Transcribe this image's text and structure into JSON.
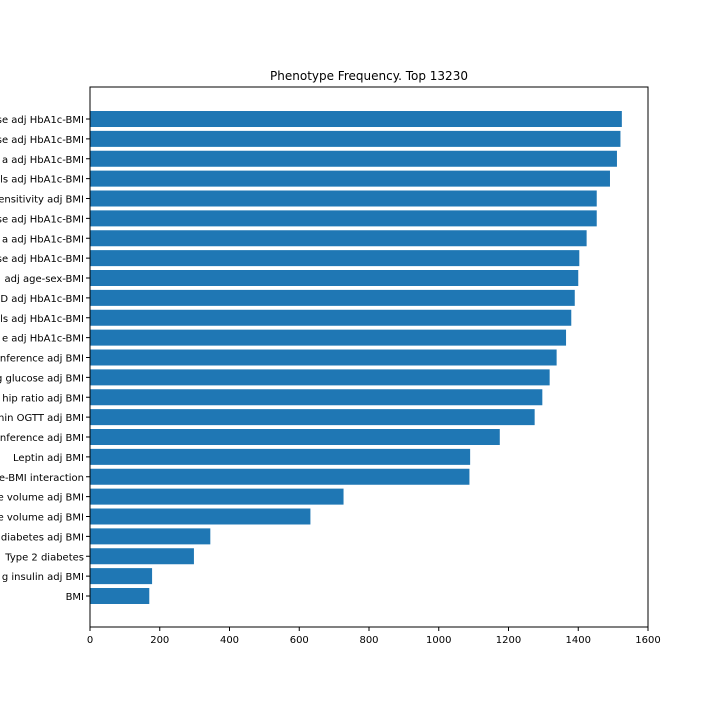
{
  "chart_data": {
    "type": "bar",
    "orientation": "horizontal",
    "title": "Phenotype Frequency. Top 13230",
    "xlabel": "",
    "ylabel": "",
    "xlim": [
      0,
      1600
    ],
    "xticks": [
      "0",
      "200",
      "400",
      "600",
      "800",
      "1000",
      "1200",
      "1400",
      "1600"
    ],
    "grid": false,
    "bar_color": "#1f77b4",
    "categories": [
      "se adj HbA1c-BMI",
      "se adj HbA1c-BMI",
      "a adj HbA1c-BMI",
      "ls adj HbA1c-BMI",
      "ensitivity adj BMI",
      "se adj HbA1c-BMI",
      "a adj HbA1c-BMI",
      "se adj HbA1c-BMI",
      "adj age-sex-BMI",
      "D adj HbA1c-BMI",
      "ls adj HbA1c-BMI",
      "e adj HbA1c-BMI",
      "nference adj BMI",
      "g glucose adj BMI",
      "hip ratio adj BMI",
      "hin OGTT adj BMI",
      "nference adj BMI",
      "Leptin adj BMI",
      "e-BMI interaction",
      "e volume adj BMI",
      "e volume adj BMI",
      "diabetes adj BMI",
      "Type 2 diabetes",
      "g insulin adj BMI",
      "BMI"
    ],
    "values": [
      1525,
      1521,
      1511,
      1491,
      1453,
      1453,
      1424,
      1403,
      1400,
      1390,
      1380,
      1365,
      1338,
      1318,
      1297,
      1275,
      1175,
      1090,
      1088,
      727,
      632,
      345,
      298,
      178,
      170
    ]
  }
}
